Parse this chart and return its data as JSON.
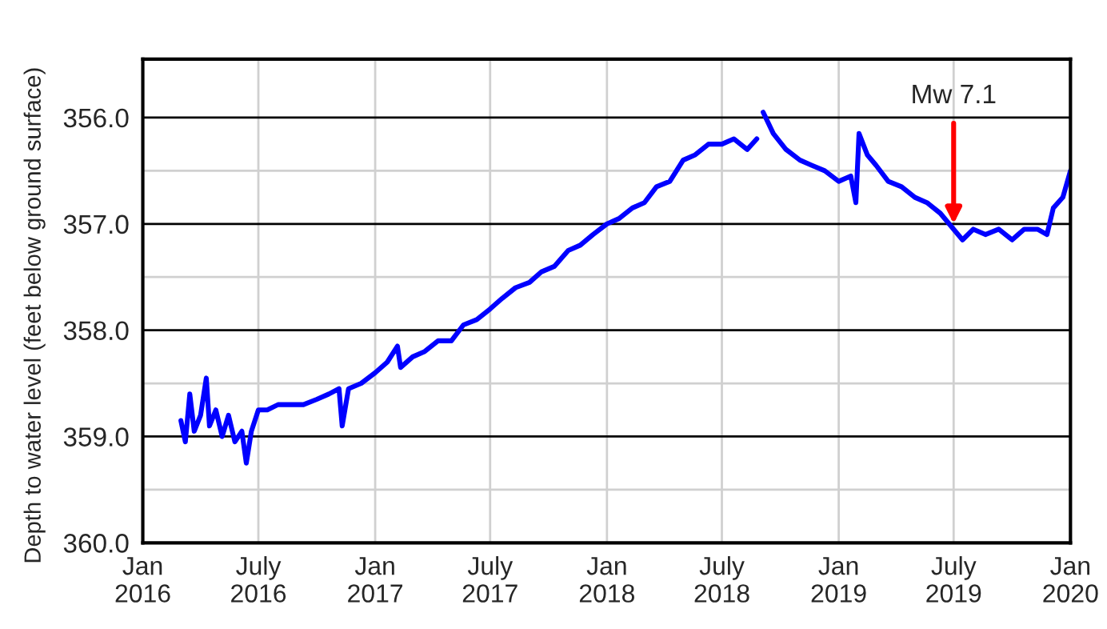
{
  "chart_data": {
    "type": "line",
    "ylabel": "Depth to water level (feet below ground surface)",
    "x": [
      "2016-03-01",
      "2016-03-08",
      "2016-03-15",
      "2016-03-22",
      "2016-04-01",
      "2016-04-10",
      "2016-04-15",
      "2016-04-25",
      "2016-05-05",
      "2016-05-15",
      "2016-05-25",
      "2016-06-05",
      "2016-06-12",
      "2016-06-20",
      "2016-07-01",
      "2016-07-15",
      "2016-08-01",
      "2016-08-20",
      "2016-09-10",
      "2016-10-01",
      "2016-10-20",
      "2016-11-05",
      "2016-11-10",
      "2016-11-20",
      "2016-12-10",
      "2017-01-01",
      "2017-01-20",
      "2017-02-05",
      "2017-02-10",
      "2017-03-01",
      "2017-03-20",
      "2017-04-10",
      "2017-05-01",
      "2017-05-20",
      "2017-06-10",
      "2017-07-01",
      "2017-07-20",
      "2017-08-10",
      "2017-09-01",
      "2017-09-20",
      "2017-10-10",
      "2017-11-01",
      "2017-11-20",
      "2017-12-10",
      "2018-01-01",
      "2018-01-20",
      "2018-02-10",
      "2018-03-01",
      "2018-03-20",
      "2018-04-10",
      "2018-05-01",
      "2018-05-20",
      "2018-06-10",
      "2018-07-01",
      "2018-07-20",
      "2018-08-10",
      "2018-08-25",
      null,
      "2018-09-04",
      "2018-09-20",
      "2018-10-10",
      "2018-11-01",
      "2018-11-20",
      "2018-12-10",
      "2019-01-01",
      "2019-01-20",
      "2019-01-28",
      "2019-02-02",
      "2019-02-15",
      "2019-03-01",
      "2019-03-20",
      "2019-04-10",
      "2019-05-01",
      "2019-05-20",
      "2019-06-10",
      "2019-07-01",
      "2019-07-15",
      "2019-08-01",
      "2019-08-20",
      "2019-09-10",
      "2019-10-01",
      "2019-10-20",
      "2019-11-10",
      "2019-11-25",
      "2019-12-05",
      "2019-12-20",
      "2020-01-01"
    ],
    "series": [
      {
        "color": "#0000ff",
        "values": [
          358.85,
          359.05,
          358.6,
          358.95,
          358.8,
          358.45,
          358.9,
          358.75,
          359.0,
          358.8,
          359.05,
          358.95,
          359.25,
          358.95,
          358.75,
          358.75,
          358.7,
          358.7,
          358.7,
          358.65,
          358.6,
          358.55,
          358.9,
          358.55,
          358.5,
          358.4,
          358.3,
          358.15,
          358.35,
          358.25,
          358.2,
          358.1,
          358.1,
          357.95,
          357.9,
          357.8,
          357.7,
          357.6,
          357.55,
          357.45,
          357.4,
          357.25,
          357.2,
          357.1,
          357.0,
          356.95,
          356.85,
          356.8,
          356.65,
          356.6,
          356.4,
          356.35,
          356.25,
          356.25,
          356.2,
          356.3,
          356.2,
          null,
          355.95,
          356.15,
          356.3,
          356.4,
          356.45,
          356.5,
          356.6,
          356.55,
          356.8,
          356.15,
          356.35,
          356.45,
          356.6,
          356.65,
          356.75,
          356.8,
          356.9,
          357.05,
          357.15,
          357.05,
          357.1,
          357.05,
          357.15,
          357.05,
          357.05,
          357.1,
          356.85,
          356.75,
          356.5
        ]
      }
    ],
    "xlim": [
      "2016-01",
      "2020-01"
    ],
    "xticks": [
      {
        "value": "2016-01",
        "label": "Jan\n2016"
      },
      {
        "value": "2016-07",
        "label": "July\n2016"
      },
      {
        "value": "2017-01",
        "label": "Jan\n2017"
      },
      {
        "value": "2017-07",
        "label": "July\n2017"
      },
      {
        "value": "2018-01",
        "label": "Jan\n2018"
      },
      {
        "value": "2018-07",
        "label": "July\n2018"
      },
      {
        "value": "2019-01",
        "label": "Jan\n2019"
      },
      {
        "value": "2019-07",
        "label": "July\n2019"
      },
      {
        "value": "2020-01",
        "label": "Jan\n2020"
      }
    ],
    "ylim": [
      360.0,
      355.45
    ],
    "yticks": [
      {
        "value": 356.0,
        "label": "356.0"
      },
      {
        "value": 356.5,
        "label": null
      },
      {
        "value": 357.0,
        "label": "357.0"
      },
      {
        "value": 357.5,
        "label": null
      },
      {
        "value": 358.0,
        "label": "358.0"
      },
      {
        "value": 358.5,
        "label": null
      },
      {
        "value": 359.0,
        "label": "359.0"
      },
      {
        "value": 359.5,
        "label": null
      },
      {
        "value": 360.0,
        "label": "360.0"
      }
    ],
    "grid": true,
    "annotations": [
      {
        "text": "Mw 7.1",
        "x": "2019-07-01",
        "y": 357.0
      }
    ]
  }
}
